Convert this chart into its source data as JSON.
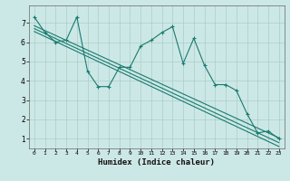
{
  "xlabel": "Humidex (Indice chaleur)",
  "bg_color": "#cce8e6",
  "grid_color": "#aaccca",
  "line_color": "#1a7a6e",
  "xlim": [
    -0.5,
    23.5
  ],
  "ylim": [
    0.5,
    7.9
  ],
  "yticks": [
    1,
    2,
    3,
    4,
    5,
    6,
    7
  ],
  "xticks": [
    0,
    1,
    2,
    3,
    4,
    5,
    6,
    7,
    8,
    9,
    10,
    11,
    12,
    13,
    14,
    15,
    16,
    17,
    18,
    19,
    20,
    21,
    22,
    23
  ],
  "zigzag_x": [
    0,
    1,
    2,
    3,
    4,
    5,
    6,
    7,
    8,
    9,
    10,
    11,
    12,
    13,
    14,
    15,
    16,
    17,
    18,
    19,
    20,
    21,
    22,
    23
  ],
  "zigzag_y": [
    7.3,
    6.5,
    6.0,
    6.1,
    7.3,
    4.5,
    3.7,
    3.7,
    4.7,
    4.7,
    5.8,
    6.1,
    6.5,
    6.8,
    4.9,
    6.2,
    4.8,
    3.8,
    3.8,
    3.5,
    2.3,
    1.3,
    1.4,
    1.0
  ],
  "line2_x": [
    0,
    23
  ],
  "line2_y": [
    6.85,
    1.05
  ],
  "line3_x": [
    0,
    23
  ],
  "line3_y": [
    6.7,
    0.8
  ],
  "line4_x": [
    0,
    23
  ],
  "line4_y": [
    6.55,
    0.6
  ]
}
